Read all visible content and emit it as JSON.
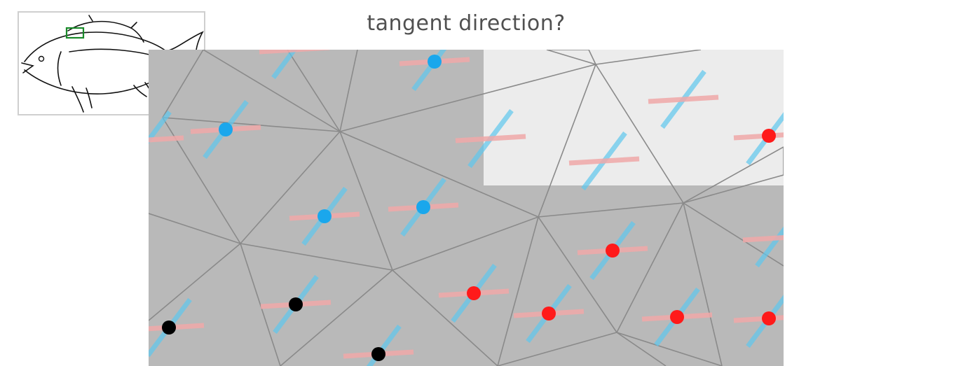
{
  "title": "tangent direction?",
  "colors": {
    "panel": "#b9b9b9",
    "panel_light": "#ececec",
    "edge": "#8a8a8a",
    "tangent_blue": "#5ec8ee",
    "tangent_red": "#f0a8a8",
    "dot_blue": "#1aa7ec",
    "dot_red": "#ff1a1a",
    "dot_black": "#000000",
    "inset_border": "#cfcfcf",
    "highlight_box": "#1a8a2a"
  },
  "icons": {
    "inset": "fish-sketch-icon",
    "highlight": "selection-rectangle-icon"
  },
  "samples": [
    {
      "color": "blue",
      "has_dot": true
    },
    {
      "color": "blue",
      "has_dot": true
    },
    {
      "color": "blue",
      "has_dot": true
    },
    {
      "color": "blue",
      "has_dot": true
    },
    {
      "color": "red",
      "has_dot": true
    },
    {
      "color": "red",
      "has_dot": true
    },
    {
      "color": "red",
      "has_dot": true
    },
    {
      "color": "red",
      "has_dot": true
    },
    {
      "color": "red",
      "has_dot": true
    },
    {
      "color": "red",
      "has_dot": true
    },
    {
      "color": "black",
      "has_dot": true
    },
    {
      "color": "black",
      "has_dot": true
    },
    {
      "color": "black",
      "has_dot": true
    }
  ]
}
